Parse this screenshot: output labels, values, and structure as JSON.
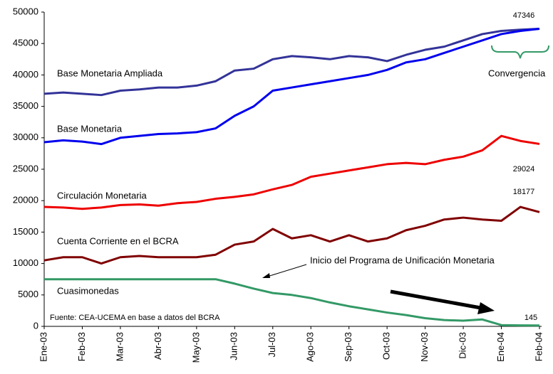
{
  "chart_data": {
    "type": "line",
    "categories": [
      "Ene-03",
      null,
      "Feb-03",
      null,
      "Mar-03",
      null,
      "Abr-03",
      null,
      "May-03",
      null,
      "Jun-03",
      null,
      "Jul-03",
      null,
      "Ago-03",
      null,
      "Sep-03",
      null,
      "Oct-03",
      null,
      "Nov-03",
      null,
      "Dic-03",
      null,
      "Ene-04",
      null,
      "Feb-04"
    ],
    "series": [
      {
        "name": "Base Monetaria Ampliada",
        "color": "#333399",
        "values": [
          37000,
          37200,
          37000,
          36800,
          37500,
          37700,
          38000,
          38000,
          38300,
          39000,
          40700,
          41000,
          42500,
          43000,
          42800,
          42500,
          43000,
          42800,
          42200,
          43200,
          44000,
          44500,
          45500,
          46500,
          47000,
          47200,
          47346
        ]
      },
      {
        "name": "Base Monetaria",
        "color": "#0000ee",
        "values": [
          29300,
          29600,
          29400,
          29000,
          30000,
          30300,
          30600,
          30700,
          30900,
          31500,
          33500,
          35000,
          37500,
          38000,
          38500,
          39000,
          39500,
          40000,
          40800,
          42000,
          42500,
          43500,
          44500,
          45500,
          46500,
          47000,
          47346
        ]
      },
      {
        "name": "Circulación Monetaria",
        "color": "#ee0000",
        "values": [
          19000,
          18900,
          18700,
          18900,
          19300,
          19400,
          19200,
          19600,
          19800,
          20300,
          20600,
          21000,
          21800,
          22500,
          23800,
          24300,
          24800,
          25300,
          25800,
          26000,
          25800,
          26500,
          27000,
          28000,
          30300,
          29500,
          29024
        ]
      },
      {
        "name": "Cuenta Corriente en el BCRA",
        "color": "#800000",
        "values": [
          10500,
          11000,
          11000,
          10000,
          11000,
          11200,
          11000,
          11000,
          11000,
          11400,
          13000,
          13500,
          15500,
          14000,
          14500,
          13500,
          14500,
          13500,
          14000,
          15300,
          16000,
          17000,
          17300,
          17000,
          16800,
          19000,
          18177
        ]
      },
      {
        "name": "Cuasimonedas",
        "color": "#339966",
        "values": [
          7500,
          7500,
          7500,
          7500,
          7500,
          7500,
          7500,
          7500,
          7500,
          7500,
          6800,
          6000,
          5300,
          5000,
          4500,
          3800,
          3200,
          2700,
          2200,
          1800,
          1300,
          1000,
          900,
          1100,
          200,
          150,
          145
        ]
      }
    ],
    "ylim": [
      0,
      50000
    ],
    "yticks": [
      0,
      5000,
      10000,
      15000,
      20000,
      25000,
      30000,
      35000,
      40000,
      45000,
      50000
    ],
    "annotations": {
      "convergence": "Convergencia",
      "program": "Inicio del Programa de Unificación Monetaria",
      "source": "Fuente: CEA-UCEMA en base a datos del BCRA"
    }
  }
}
